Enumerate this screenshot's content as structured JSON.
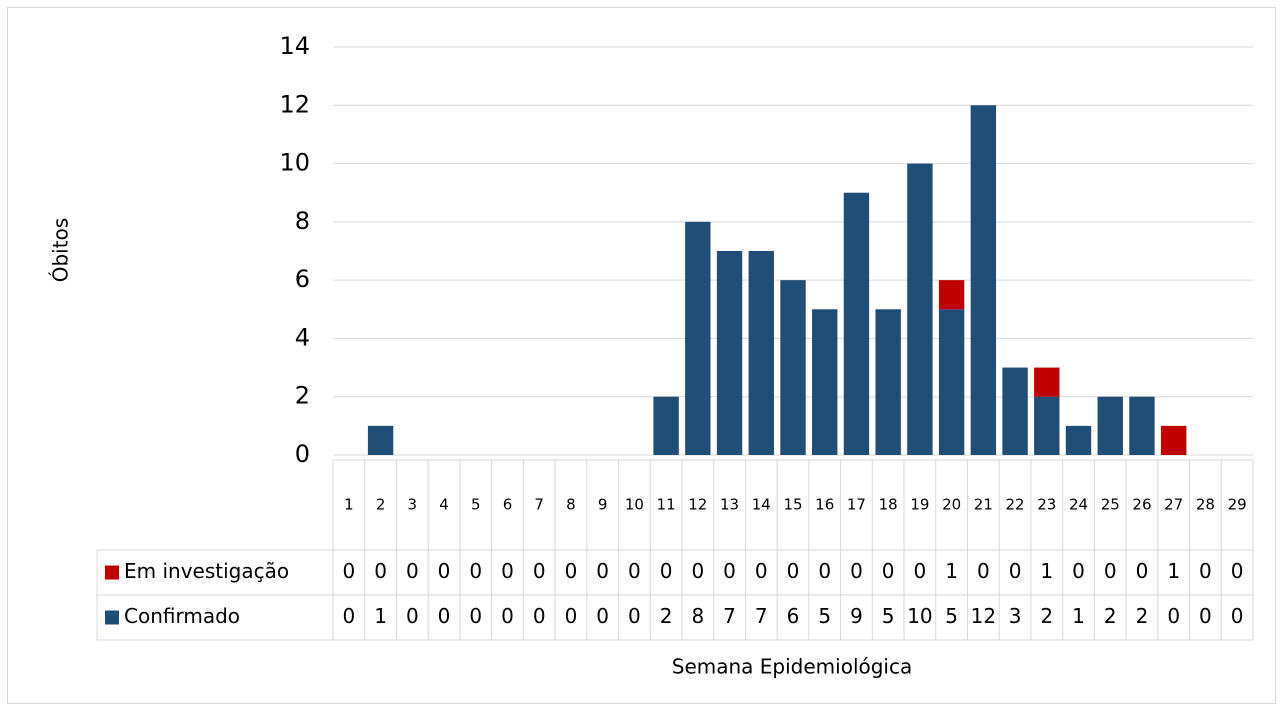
{
  "chart_data": {
    "type": "stacked_bar",
    "x_label": "Semana Epidemiológica",
    "y_label": "Óbitos",
    "categories": [
      "1",
      "2",
      "3",
      "4",
      "5",
      "6",
      "7",
      "8",
      "9",
      "10",
      "11",
      "12",
      "13",
      "14",
      "15",
      "16",
      "17",
      "18",
      "19",
      "20",
      "21",
      "22",
      "23",
      "24",
      "25",
      "26",
      "27",
      "28",
      "29"
    ],
    "series": [
      {
        "name": "Confirmado",
        "color": "#1f4e79",
        "values": [
          0,
          1,
          0,
          0,
          0,
          0,
          0,
          0,
          0,
          0,
          2,
          8,
          7,
          7,
          6,
          5,
          9,
          5,
          10,
          5,
          12,
          3,
          2,
          1,
          2,
          2,
          0,
          0,
          0
        ]
      },
      {
        "name": "Em investigação",
        "color": "#c00000",
        "values": [
          0,
          0,
          0,
          0,
          0,
          0,
          0,
          0,
          0,
          0,
          0,
          0,
          0,
          0,
          0,
          0,
          0,
          0,
          0,
          1,
          0,
          0,
          1,
          0,
          0,
          0,
          1,
          0,
          0
        ]
      }
    ],
    "ylim": [
      0,
      14
    ],
    "yticks": [
      0,
      2,
      4,
      6,
      8,
      10,
      12,
      14
    ],
    "grid": true
  }
}
